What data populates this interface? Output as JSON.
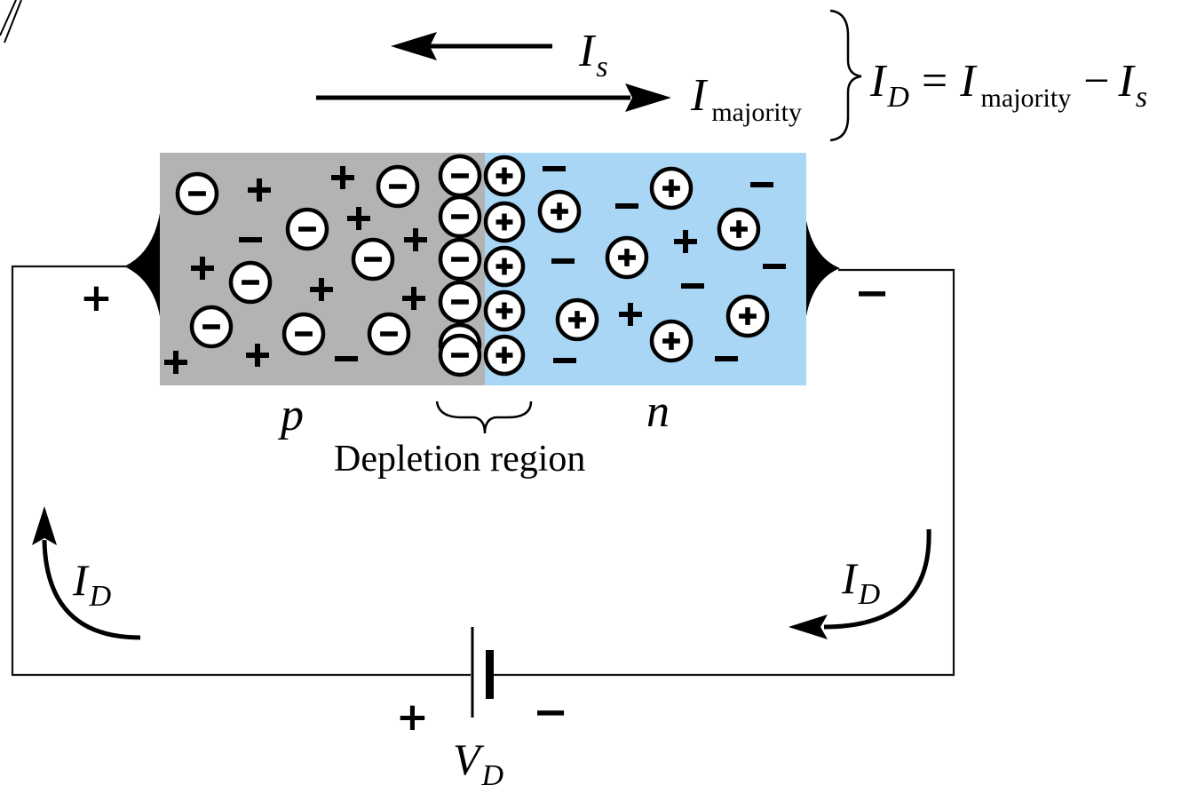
{
  "labels": {
    "current_is": "I",
    "current_is_sub": "s",
    "current_majority": "I",
    "current_majority_sub": "majority",
    "equation": {
      "lhs": "I",
      "lhs_sub": "D",
      "eq": "=",
      "term1": "I",
      "term1_sub": "majority",
      "minus": "−",
      "term2": "I",
      "term2_sub": "s"
    },
    "p_region": "p",
    "n_region": "n",
    "depletion": "Depletion region",
    "left_current": "I",
    "left_current_sub": "D",
    "right_current": "I",
    "right_current_sub": "D",
    "battery": "V",
    "battery_sub": "D",
    "left_terminal": "+",
    "right_terminal": "−",
    "battery_plus": "+",
    "battery_minus": "−"
  },
  "colors": {
    "p_region": "#b3b3b3",
    "n_region": "#a9d6f5",
    "wire": "#111111"
  }
}
